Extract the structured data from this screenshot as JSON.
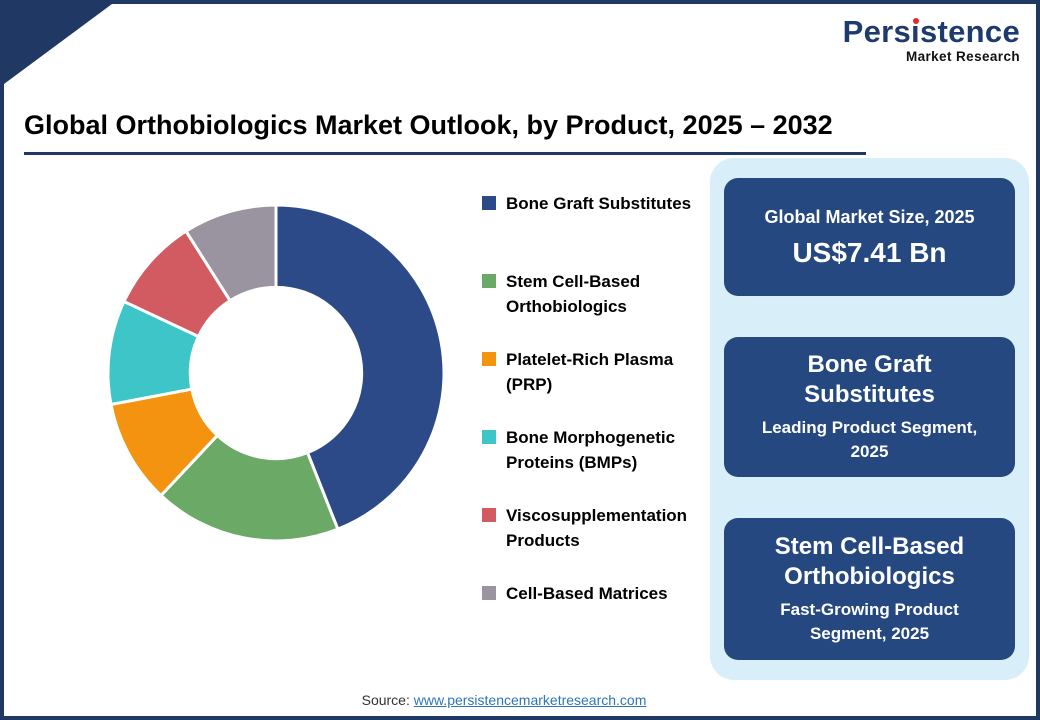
{
  "page": {
    "title": "Global Orthobiologics Market Outlook, by Product, 2025 – 2032",
    "source_label": "Source: ",
    "source_link": "www.persistencemarketresearch.com"
  },
  "logo": {
    "brand": "Persistence",
    "brand_pre": "Pers",
    "brand_i": "ı",
    "brand_post": "stence",
    "tagline": "Market Research"
  },
  "colors": {
    "navy": "#1F3864",
    "card_blue": "#254880",
    "panel_blue": "#D8EEF9",
    "accent_red": "#E8262A",
    "link_blue": "#2E75B6"
  },
  "chart_data": {
    "type": "pie",
    "subtype": "donut",
    "title": "Global Orthobiologics Market Outlook, by Product, 2025 – 2032",
    "start_angle_deg": 0,
    "direction": "clockwise",
    "inner_radius_ratio": 0.51,
    "unit": "% (estimated from arc angles; values not labeled on chart)",
    "legend_position": "right",
    "segments": [
      {
        "label": "Bone Graft Substitutes",
        "value": 44,
        "color": "#2B4A87"
      },
      {
        "label": "Stem Cell-Based Orthobiologics",
        "value": 18,
        "color": "#6BA966"
      },
      {
        "label": "Platelet-Rich Plasma (PRP)",
        "value": 10,
        "color": "#F4930F"
      },
      {
        "label": "Bone Morphogenetic Proteins (BMPs)",
        "value": 10,
        "color": "#3EC5C8"
      },
      {
        "label": "Viscosupplementation Products",
        "value": 9,
        "color": "#D15B60"
      },
      {
        "label": "Cell-Based Matrices",
        "value": 9,
        "color": "#9A93A0"
      }
    ]
  },
  "panel": {
    "cards": [
      {
        "title": "Global Market Size, 2025",
        "value": "US$7.41 Bn"
      },
      {
        "title": "Bone Graft Substitutes",
        "subtitle": "Leading Product Segment, 2025"
      },
      {
        "title": "Stem Cell-Based Orthobiologics",
        "subtitle": "Fast-Growing Product Segment, 2025"
      }
    ]
  }
}
